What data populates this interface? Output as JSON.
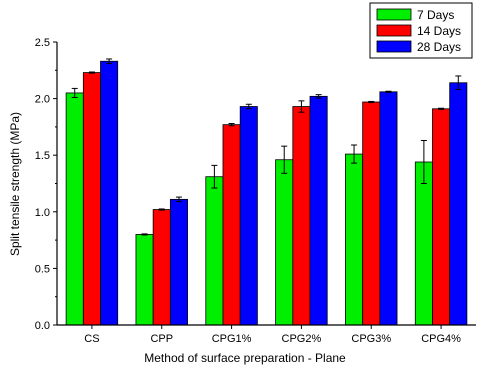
{
  "chart_data": {
    "type": "bar",
    "title": "",
    "xlabel": "Method of surface preparation - Plane",
    "ylabel": "Split tensile strength (MPa)",
    "ylim": [
      0.0,
      2.5
    ],
    "yticks": [
      "0.0",
      "0.5",
      "1.0",
      "1.5",
      "2.0",
      "2.5"
    ],
    "categories": [
      "CS",
      "CPP",
      "CPG1%",
      "CPG2%",
      "CPG3%",
      "CPG4%"
    ],
    "series": [
      {
        "name": "7 Days",
        "color": "#00ee00",
        "values": [
          2.05,
          0.8,
          1.31,
          1.46,
          1.51,
          1.44
        ],
        "errors": [
          0.04,
          0.005,
          0.1,
          0.12,
          0.08,
          0.19
        ]
      },
      {
        "name": "14 Days",
        "color": "#ff0000",
        "values": [
          2.23,
          1.02,
          1.77,
          1.93,
          1.97,
          1.91
        ],
        "errors": [
          0.005,
          0.005,
          0.01,
          0.05,
          0.005,
          0.005
        ]
      },
      {
        "name": "28 Days",
        "color": "#0000ff",
        "values": [
          2.33,
          1.11,
          1.93,
          2.02,
          2.06,
          2.14
        ],
        "errors": [
          0.02,
          0.02,
          0.02,
          0.015,
          0.005,
          0.06
        ]
      }
    ],
    "legend_position": "top-right",
    "grid": false
  }
}
